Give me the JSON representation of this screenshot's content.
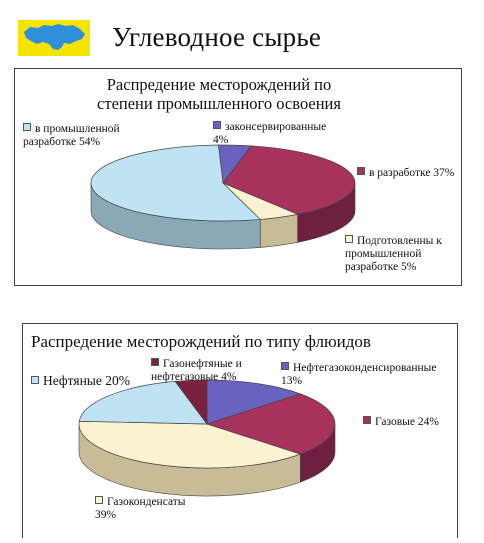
{
  "page": {
    "title": "Углеводное сырье"
  },
  "colors": {
    "blue_light": "#bfe3f2",
    "blue_light_side": "#8aa9b6",
    "purple": "#6a62c0",
    "purple_side": "#4a4590",
    "magenta": "#a8325e",
    "magenta_side": "#6e2040",
    "cream": "#fbf2d2",
    "cream_side": "#c8bc98",
    "maroon": "#7a2040",
    "maroon_side": "#501428",
    "map_yellow": "#f5e400",
    "map_blue": "#2f8fd8"
  },
  "chart_data": [
    {
      "type": "pie",
      "title": "Распредение месторождений по степени промышленного освоения",
      "labels": [
        {
          "name": "в промышленной разработке",
          "value": 54,
          "text": "в промышленной\nразработке 54%",
          "color": "blue_light"
        },
        {
          "name": "законсервированные",
          "value": 4,
          "text": "законсервированные\n4%",
          "color": "purple"
        },
        {
          "name": "в разработке",
          "value": 37,
          "text": "в разработке 37%",
          "color": "magenta"
        },
        {
          "name": "Подготовленны к промышленной разработке",
          "value": 5,
          "text": "Подготовленны к\nпромышленной\nразработке 5%",
          "color": "cream"
        }
      ]
    },
    {
      "type": "pie",
      "title": "Распредение месторождений по типу флюидов",
      "labels": [
        {
          "name": "Нефтяные",
          "value": 20,
          "text": "Нефтяные 20%",
          "color": "blue_light"
        },
        {
          "name": "Газонефтяные и нефтегазовые",
          "value": 4,
          "text": "Газонефтяные и\nнефтегазовые 4%",
          "color": "maroon"
        },
        {
          "name": "Нефтегазоконденсированные",
          "value": 13,
          "text": "Нефтегазоконденсированные\n13%",
          "color": "purple"
        },
        {
          "name": "Газовые",
          "value": 24,
          "text": "Газовые 24%",
          "color": "magenta"
        },
        {
          "name": "Газоконденсаты",
          "value": 39,
          "text": "Газоконденсаты\n39%",
          "color": "cream"
        }
      ]
    }
  ]
}
